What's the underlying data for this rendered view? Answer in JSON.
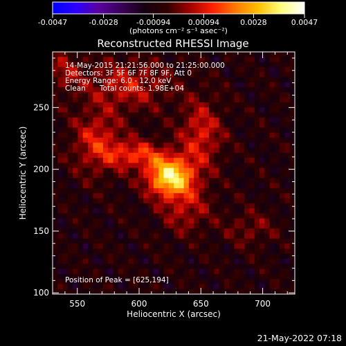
{
  "chart_data": {
    "type": "heatmap",
    "title": "Reconstructed RHESSI Image",
    "xlabel": "Heliocentric X (arcsec)",
    "ylabel": "Heliocentric Y (arcsec)",
    "xlim": [
      530,
      726
    ],
    "ylim": [
      99,
      295
    ],
    "x_ticks": [
      550,
      600,
      650,
      700
    ],
    "y_ticks": [
      100,
      150,
      200,
      250
    ],
    "colorbar": {
      "min": -0.0047,
      "max": 0.0047,
      "ticks": [
        "-0.0047",
        "-0.0028",
        "-0.00094",
        "0.00094",
        "0.0028",
        "0.0047"
      ],
      "label": "(photons cm⁻² s⁻¹ asec⁻²)",
      "colormap": [
        "#0000ff",
        "#2a00ff",
        "#5a00a0",
        "#3a0058",
        "#140010",
        "#300000",
        "#a00000",
        "#ff2000",
        "#ff7a00",
        "#ffc000",
        "#ffff80",
        "#ffffff"
      ]
    },
    "peak": {
      "x": 625,
      "y": 194,
      "value": 0.0047
    },
    "sources": [
      {
        "x": 625,
        "y": 194,
        "amp": 1.0,
        "sx": 13,
        "sy": 11
      },
      {
        "x": 566,
        "y": 222,
        "amp": 0.4,
        "sx": 14,
        "sy": 18
      },
      {
        "x": 598,
        "y": 212,
        "amp": 0.45,
        "sx": 16,
        "sy": 8
      },
      {
        "x": 650,
        "y": 228,
        "amp": 0.4,
        "sx": 12,
        "sy": 20
      },
      {
        "x": 590,
        "y": 268,
        "amp": 0.35,
        "sx": 24,
        "sy": 14
      },
      {
        "x": 638,
        "y": 168,
        "amp": 0.3,
        "sx": 14,
        "sy": 14
      },
      {
        "x": 690,
        "y": 152,
        "amp": 0.2,
        "sx": 14,
        "sy": 10
      },
      {
        "x": 540,
        "y": 280,
        "amp": 0.25,
        "sx": 10,
        "sy": 12
      }
    ]
  },
  "annotations": {
    "time_range": "14-May-2015 21:21:56.000 to 21:25:00.000",
    "detectors": "Detectors: 3F 5F 6F 7F 8F 9F, Att 0",
    "energy": "Energy Range: 6.0 - 12.0 keV",
    "method": "Clean",
    "counts": "Total counts: 1.98E+04",
    "peak_position": "Position of Peak = [625,194]",
    "timestamp": "21-May-2022 07:18"
  }
}
